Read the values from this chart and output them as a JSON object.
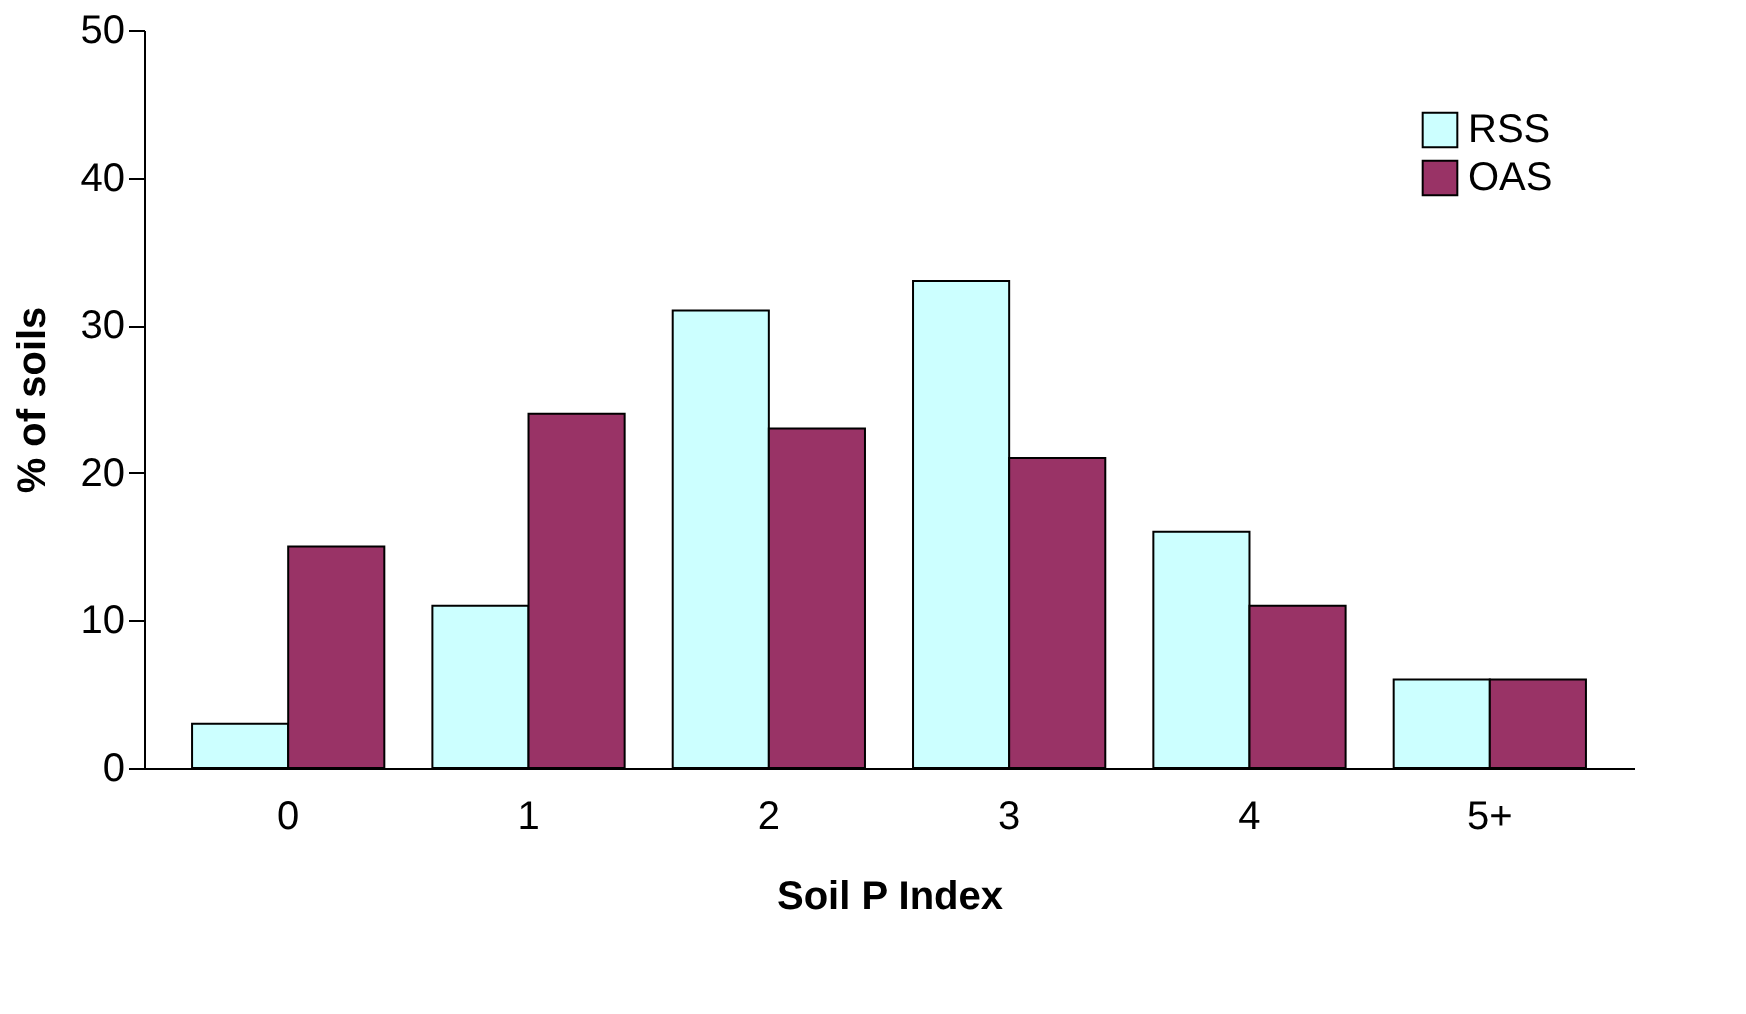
{
  "chart_data": {
    "type": "bar",
    "xlabel": "Soil P Index",
    "ylabel": "% of soils",
    "categories": [
      "0",
      "1",
      "2",
      "3",
      "4",
      "5+"
    ],
    "series": [
      {
        "name": "RSS",
        "color": "#ccffff",
        "values": [
          3,
          11,
          31,
          33,
          16,
          6
        ]
      },
      {
        "name": "OAS",
        "color": "#993366",
        "values": [
          15,
          24,
          23,
          21,
          11,
          6
        ]
      }
    ],
    "ylim": [
      0,
      50
    ],
    "yticks": [
      0,
      10,
      20,
      30,
      40,
      50
    ],
    "grid": false,
    "legend": "top right"
  }
}
